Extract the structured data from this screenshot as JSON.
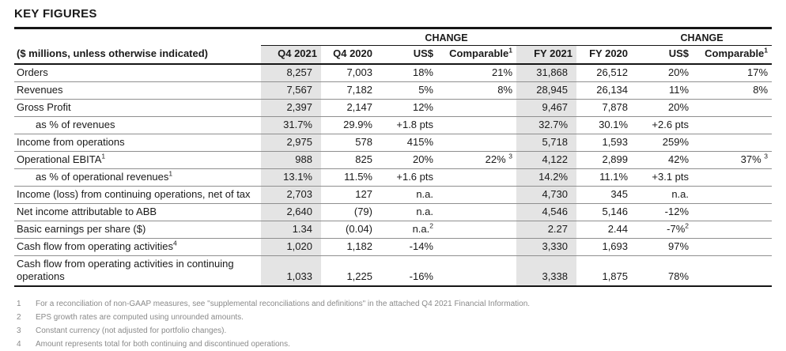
{
  "title": "KEY FIGURES",
  "table": {
    "unit_label": "($ millions, unless otherwise indicated)",
    "change_label": "CHANGE",
    "columns": [
      "Q4 2021",
      "Q4 2020",
      "US$",
      "Comparable^1",
      "FY 2021",
      "FY 2020",
      "US$",
      "Comparable^1"
    ],
    "rows": [
      {
        "label": "Orders",
        "indent": false,
        "values": [
          "8,257",
          "7,003",
          "18%",
          "21%",
          "31,868",
          "26,512",
          "20%",
          "17%"
        ]
      },
      {
        "label": "Revenues",
        "indent": false,
        "values": [
          "7,567",
          "7,182",
          "5%",
          "8%",
          "28,945",
          "26,134",
          "11%",
          "8%"
        ]
      },
      {
        "label": "Gross Profit",
        "indent": false,
        "values": [
          "2,397",
          "2,147",
          "12%",
          "",
          "9,467",
          "7,878",
          "20%",
          ""
        ]
      },
      {
        "label": "as % of revenues",
        "indent": true,
        "values": [
          "31.7%",
          "29.9%",
          "+1.8 pts",
          "",
          "32.7%",
          "30.1%",
          "+2.6 pts",
          ""
        ]
      },
      {
        "label": "Income from operations",
        "indent": false,
        "values": [
          "2,975",
          "578",
          "415%",
          "",
          "5,718",
          "1,593",
          "259%",
          ""
        ]
      },
      {
        "label": "Operational EBITA^1",
        "indent": false,
        "values": [
          "988",
          "825",
          "20%",
          "22% ^3",
          "4,122",
          "2,899",
          "42%",
          "37% ^3"
        ]
      },
      {
        "label": "as % of operational revenues^1",
        "indent": true,
        "values": [
          "13.1%",
          "11.5%",
          "+1.6 pts",
          "",
          "14.2%",
          "11.1%",
          "+3.1 pts",
          ""
        ]
      },
      {
        "label": "Income (loss) from continuing operations, net of tax",
        "indent": false,
        "values": [
          "2,703",
          "127",
          "n.a.",
          "",
          "4,730",
          "345",
          "n.a.",
          ""
        ]
      },
      {
        "label": "Net income attributable to ABB",
        "indent": false,
        "values": [
          "2,640",
          "(79)",
          "n.a.",
          "",
          "4,546",
          "5,146",
          "-12%",
          ""
        ]
      },
      {
        "label": "Basic earnings per share ($)",
        "indent": false,
        "values": [
          "1.34",
          "(0.04)",
          "n.a.^2",
          "",
          "2.27",
          "2.44",
          "-7%^2",
          ""
        ]
      },
      {
        "label": "Cash flow from operating activities^4",
        "indent": false,
        "values": [
          "1,020",
          "1,182",
          "-14%",
          "",
          "3,330",
          "1,693",
          "97%",
          ""
        ]
      },
      {
        "label": "Cash flow from operating activities in continuing operations",
        "indent": false,
        "values": [
          "1,033",
          "1,225",
          "-16%",
          "",
          "3,338",
          "1,875",
          "78%",
          ""
        ]
      }
    ]
  },
  "footnotes": [
    {
      "marker": "1",
      "text": "For a reconciliation of non-GAAP measures, see \"supplemental reconciliations and definitions\" in the attached Q4 2021 Financial Information."
    },
    {
      "marker": "2",
      "text": "EPS growth rates are computed using unrounded amounts."
    },
    {
      "marker": "3",
      "text": "Constant currency (not adjusted for portfolio changes)."
    },
    {
      "marker": "4",
      "text": "Amount represents total for both continuing and discontinued operations."
    }
  ],
  "colors": {
    "shaded_column": "#e4e4e4",
    "row_divider": "#8f8f8f",
    "rule_black": "#161616",
    "footnote_gray": "#8a8a8a"
  }
}
